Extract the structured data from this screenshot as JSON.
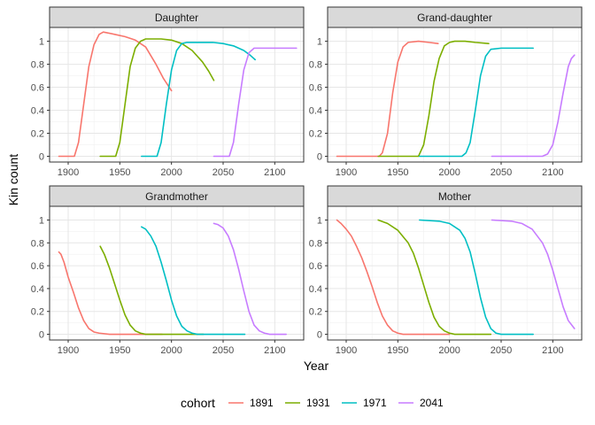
{
  "chart_data": {
    "type": "line",
    "xlabel": "Year",
    "ylabel": "Kin count",
    "xlim": [
      1882,
      2128
    ],
    "ylim": [
      -0.05,
      1.12
    ],
    "x_ticks": [
      1900,
      1950,
      2000,
      2050,
      2100
    ],
    "y_ticks": [
      0,
      0.2,
      0.4,
      0.6,
      0.8,
      1
    ],
    "y_tick_labels": [
      "0",
      "0.2",
      "0.4",
      "0.6",
      "0.8",
      "1"
    ],
    "grid": true,
    "legend": {
      "title": "cohort",
      "position": "bottom",
      "entries": [
        {
          "label": "1891",
          "color": "#F8766D"
        },
        {
          "label": "1931",
          "color": "#7CAE00"
        },
        {
          "label": "1971",
          "color": "#00BFC4"
        },
        {
          "label": "2041",
          "color": "#C77CFF"
        }
      ]
    },
    "panels": [
      {
        "title": "Daughter",
        "series": [
          {
            "cohort": "1891",
            "points": [
              [
                1891,
                0
              ],
              [
                1906,
                0
              ],
              [
                1910,
                0.12
              ],
              [
                1915,
                0.45
              ],
              [
                1920,
                0.78
              ],
              [
                1925,
                0.97
              ],
              [
                1930,
                1.06
              ],
              [
                1934,
                1.08
              ],
              [
                1945,
                1.06
              ],
              [
                1955,
                1.04
              ],
              [
                1965,
                1.01
              ],
              [
                1975,
                0.95
              ],
              [
                1985,
                0.8
              ],
              [
                1992,
                0.68
              ],
              [
                2000,
                0.57
              ]
            ]
          },
          {
            "cohort": "1931",
            "points": [
              [
                1931,
                0
              ],
              [
                1946,
                0
              ],
              [
                1950,
                0.12
              ],
              [
                1955,
                0.45
              ],
              [
                1960,
                0.78
              ],
              [
                1965,
                0.94
              ],
              [
                1970,
                1.0
              ],
              [
                1975,
                1.02
              ],
              [
                1990,
                1.02
              ],
              [
                2000,
                1.01
              ],
              [
                2010,
                0.98
              ],
              [
                2020,
                0.92
              ],
              [
                2030,
                0.82
              ],
              [
                2036,
                0.74
              ],
              [
                2041,
                0.66
              ]
            ]
          },
          {
            "cohort": "1971",
            "points": [
              [
                1971,
                0
              ],
              [
                1986,
                0
              ],
              [
                1990,
                0.12
              ],
              [
                1995,
                0.45
              ],
              [
                2000,
                0.75
              ],
              [
                2005,
                0.92
              ],
              [
                2010,
                0.98
              ],
              [
                2015,
                0.99
              ],
              [
                2030,
                0.99
              ],
              [
                2040,
                0.99
              ],
              [
                2050,
                0.98
              ],
              [
                2060,
                0.96
              ],
              [
                2070,
                0.92
              ],
              [
                2076,
                0.88
              ],
              [
                2081,
                0.84
              ]
            ]
          },
          {
            "cohort": "2041",
            "points": [
              [
                2041,
                0
              ],
              [
                2056,
                0
              ],
              [
                2060,
                0.12
              ],
              [
                2065,
                0.45
              ],
              [
                2070,
                0.75
              ],
              [
                2075,
                0.9
              ],
              [
                2080,
                0.94
              ],
              [
                2085,
                0.94
              ],
              [
                2100,
                0.94
              ],
              [
                2111,
                0.94
              ],
              [
                2121,
                0.94
              ]
            ]
          }
        ]
      },
      {
        "title": "Grand-daughter",
        "series": [
          {
            "cohort": "1891",
            "points": [
              [
                1891,
                0
              ],
              [
                1932,
                0
              ],
              [
                1935,
                0.03
              ],
              [
                1940,
                0.2
              ],
              [
                1945,
                0.55
              ],
              [
                1950,
                0.82
              ],
              [
                1955,
                0.95
              ],
              [
                1960,
                0.99
              ],
              [
                1970,
                1.0
              ],
              [
                1980,
                0.99
              ],
              [
                1989,
                0.98
              ]
            ]
          },
          {
            "cohort": "1931",
            "points": [
              [
                1931,
                0
              ],
              [
                1970,
                0
              ],
              [
                1975,
                0.1
              ],
              [
                1980,
                0.35
              ],
              [
                1985,
                0.65
              ],
              [
                1990,
                0.85
              ],
              [
                1995,
                0.96
              ],
              [
                2000,
                0.99
              ],
              [
                2005,
                1.0
              ],
              [
                2015,
                1.0
              ],
              [
                2025,
                0.99
              ],
              [
                2038,
                0.98
              ]
            ]
          },
          {
            "cohort": "1971",
            "points": [
              [
                1971,
                0
              ],
              [
                2012,
                0
              ],
              [
                2016,
                0.03
              ],
              [
                2020,
                0.12
              ],
              [
                2025,
                0.4
              ],
              [
                2030,
                0.7
              ],
              [
                2035,
                0.87
              ],
              [
                2040,
                0.93
              ],
              [
                2050,
                0.94
              ],
              [
                2060,
                0.94
              ],
              [
                2070,
                0.94
              ],
              [
                2081,
                0.94
              ]
            ]
          },
          {
            "cohort": "2041",
            "points": [
              [
                2041,
                0
              ],
              [
                2090,
                0
              ],
              [
                2095,
                0.02
              ],
              [
                2100,
                0.1
              ],
              [
                2105,
                0.3
              ],
              [
                2110,
                0.55
              ],
              [
                2115,
                0.78
              ],
              [
                2118,
                0.85
              ],
              [
                2121,
                0.88
              ]
            ]
          }
        ]
      },
      {
        "title": "Grandmother",
        "series": [
          {
            "cohort": "1891",
            "points": [
              [
                1891,
                0.72
              ],
              [
                1893,
                0.7
              ],
              [
                1896,
                0.63
              ],
              [
                1900,
                0.5
              ],
              [
                1905,
                0.37
              ],
              [
                1910,
                0.23
              ],
              [
                1915,
                0.12
              ],
              [
                1920,
                0.05
              ],
              [
                1925,
                0.02
              ],
              [
                1930,
                0.01
              ],
              [
                1940,
                0
              ],
              [
                1950,
                0
              ],
              [
                1960,
                0
              ],
              [
                1970,
                0
              ],
              [
                1980,
                0
              ],
              [
                1991,
                0
              ]
            ]
          },
          {
            "cohort": "1931",
            "points": [
              [
                1931,
                0.77
              ],
              [
                1935,
                0.7
              ],
              [
                1940,
                0.58
              ],
              [
                1945,
                0.44
              ],
              [
                1950,
                0.3
              ],
              [
                1955,
                0.17
              ],
              [
                1960,
                0.08
              ],
              [
                1965,
                0.03
              ],
              [
                1970,
                0.01
              ],
              [
                1975,
                0
              ],
              [
                1990,
                0
              ],
              [
                2010,
                0
              ],
              [
                2031,
                0
              ]
            ]
          },
          {
            "cohort": "1971",
            "points": [
              [
                1971,
                0.94
              ],
              [
                1975,
                0.92
              ],
              [
                1980,
                0.86
              ],
              [
                1985,
                0.77
              ],
              [
                1990,
                0.63
              ],
              [
                1995,
                0.47
              ],
              [
                2000,
                0.3
              ],
              [
                2005,
                0.16
              ],
              [
                2010,
                0.07
              ],
              [
                2015,
                0.03
              ],
              [
                2020,
                0.01
              ],
              [
                2025,
                0
              ],
              [
                2050,
                0
              ],
              [
                2071,
                0
              ]
            ]
          },
          {
            "cohort": "2041",
            "points": [
              [
                2041,
                0.97
              ],
              [
                2045,
                0.96
              ],
              [
                2050,
                0.93
              ],
              [
                2055,
                0.86
              ],
              [
                2060,
                0.74
              ],
              [
                2065,
                0.57
              ],
              [
                2070,
                0.38
              ],
              [
                2075,
                0.2
              ],
              [
                2080,
                0.08
              ],
              [
                2085,
                0.03
              ],
              [
                2090,
                0.01
              ],
              [
                2095,
                0
              ],
              [
                2105,
                0
              ],
              [
                2111,
                0
              ]
            ]
          }
        ]
      },
      {
        "title": "Mother",
        "series": [
          {
            "cohort": "1891",
            "points": [
              [
                1891,
                1.0
              ],
              [
                1895,
                0.97
              ],
              [
                1900,
                0.92
              ],
              [
                1905,
                0.86
              ],
              [
                1910,
                0.77
              ],
              [
                1915,
                0.67
              ],
              [
                1920,
                0.55
              ],
              [
                1925,
                0.42
              ],
              [
                1930,
                0.28
              ],
              [
                1935,
                0.16
              ],
              [
                1940,
                0.08
              ],
              [
                1945,
                0.03
              ],
              [
                1950,
                0.01
              ],
              [
                1955,
                0
              ],
              [
                1975,
                0
              ],
              [
                2000,
                0
              ]
            ]
          },
          {
            "cohort": "1931",
            "points": [
              [
                1931,
                1.0
              ],
              [
                1940,
                0.97
              ],
              [
                1950,
                0.91
              ],
              [
                1960,
                0.8
              ],
              [
                1965,
                0.71
              ],
              [
                1970,
                0.58
              ],
              [
                1975,
                0.43
              ],
              [
                1980,
                0.28
              ],
              [
                1985,
                0.15
              ],
              [
                1990,
                0.07
              ],
              [
                1995,
                0.03
              ],
              [
                2000,
                0.01
              ],
              [
                2005,
                0
              ],
              [
                2020,
                0
              ],
              [
                2040,
                0
              ]
            ]
          },
          {
            "cohort": "1971",
            "points": [
              [
                1971,
                1.0
              ],
              [
                1990,
                0.99
              ],
              [
                2000,
                0.97
              ],
              [
                2010,
                0.91
              ],
              [
                2015,
                0.84
              ],
              [
                2020,
                0.72
              ],
              [
                2025,
                0.53
              ],
              [
                2030,
                0.32
              ],
              [
                2035,
                0.15
              ],
              [
                2040,
                0.05
              ],
              [
                2045,
                0.01
              ],
              [
                2050,
                0
              ],
              [
                2081,
                0
              ]
            ]
          },
          {
            "cohort": "2041",
            "points": [
              [
                2041,
                1.0
              ],
              [
                2060,
                0.99
              ],
              [
                2070,
                0.97
              ],
              [
                2080,
                0.92
              ],
              [
                2090,
                0.8
              ],
              [
                2095,
                0.7
              ],
              [
                2100,
                0.56
              ],
              [
                2105,
                0.4
              ],
              [
                2110,
                0.24
              ],
              [
                2115,
                0.12
              ],
              [
                2121,
                0.05
              ]
            ]
          }
        ]
      }
    ]
  }
}
